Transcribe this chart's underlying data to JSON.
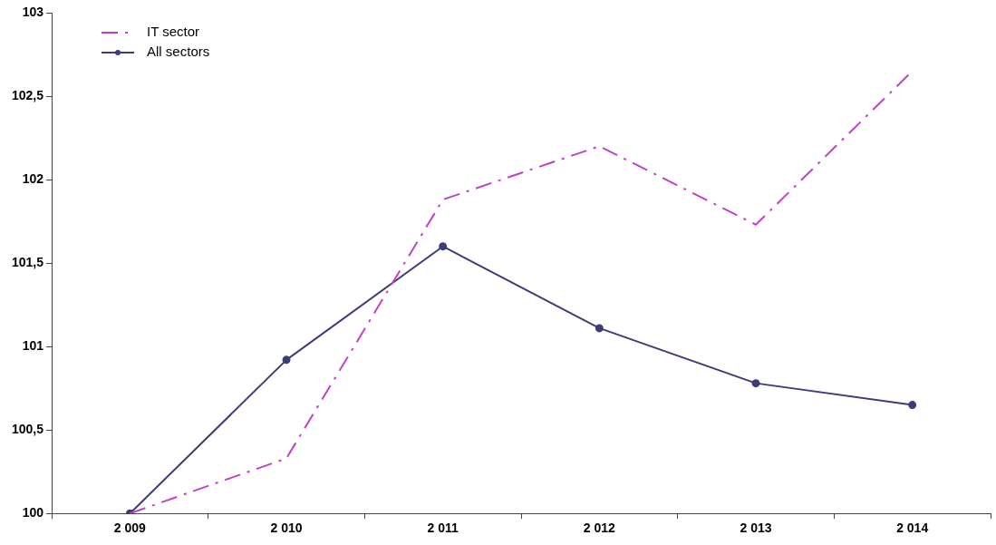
{
  "chart_data": {
    "type": "line",
    "categories": [
      "2 009",
      "2 010",
      "2 011",
      "2 012",
      "2 013",
      "2 014"
    ],
    "series": [
      {
        "name": "IT sector",
        "color": "#c040c8",
        "values": [
          100,
          100.33,
          101.88,
          102.2,
          101.73,
          102.65
        ],
        "line_style": "dashdot",
        "marker": "none"
      },
      {
        "name": "All sectors",
        "color": "#3c3c7a",
        "values": [
          100,
          100.92,
          101.6,
          101.11,
          100.78,
          100.65
        ],
        "line_style": "solid",
        "marker": "circle"
      }
    ],
    "ylim": [
      100,
      103
    ],
    "yticks": [
      100,
      {
        "value": 100.5,
        "label": "100,5"
      },
      101,
      {
        "value": 101.5,
        "label": "101,5"
      },
      102,
      {
        "value": 102.5,
        "label": "102,5"
      },
      103
    ],
    "grid": false,
    "legend": "top left"
  }
}
